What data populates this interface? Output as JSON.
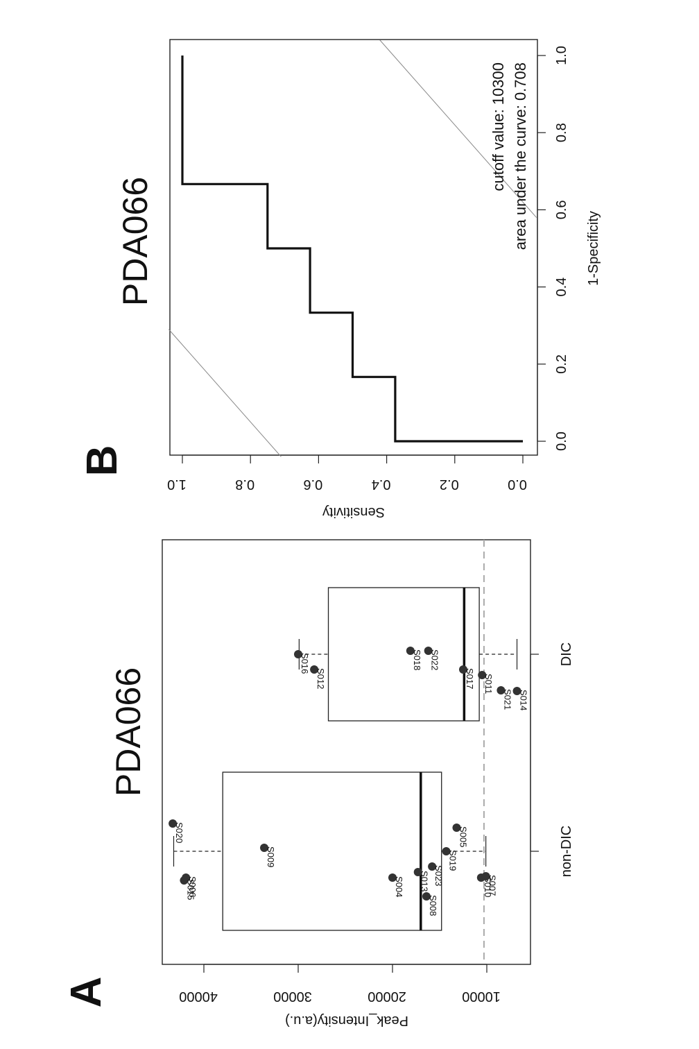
{
  "panel_a": {
    "letter": "A",
    "chart_data": {
      "type": "box",
      "title": "PDA066",
      "xlabel": "",
      "ylabel": "Peak_Intensity(a.u.)",
      "ylim": [
        5000,
        44000
      ],
      "yticks": [
        10000,
        20000,
        30000,
        40000
      ],
      "categories": [
        "non-DIC",
        "DIC"
      ],
      "cutoff_line": 10300,
      "boxes": [
        {
          "category": "non-DIC",
          "whisker_low": 10100,
          "q1": 14800,
          "median": 17000,
          "q3": 38000,
          "whisker_high": 43200
        },
        {
          "category": "DIC",
          "whisker_low": 6800,
          "q1": 10800,
          "median": 12400,
          "q3": 26800,
          "whisker_high": 29900
        }
      ],
      "points": [
        {
          "category": "non-DIC",
          "label": "S008",
          "value": 16400
        },
        {
          "category": "non-DIC",
          "label": "S004",
          "value": 20000
        },
        {
          "category": "non-DIC",
          "label": "S013",
          "value": 17300
        },
        {
          "category": "non-DIC",
          "label": "S023",
          "value": 15800
        },
        {
          "category": "non-DIC",
          "label": "S019",
          "value": 14300
        },
        {
          "category": "non-DIC",
          "label": "S005",
          "value": 13200
        },
        {
          "category": "non-DIC",
          "label": "S009",
          "value": 33600
        },
        {
          "category": "non-DIC",
          "label": "S006",
          "value": 41900
        },
        {
          "category": "non-DIC",
          "label": "S015",
          "value": 42100
        },
        {
          "category": "non-DIC",
          "label": "S020",
          "value": 43300
        },
        {
          "category": "non-DIC",
          "label": "S010",
          "value": 10600
        },
        {
          "category": "non-DIC",
          "label": "S007",
          "value": 10100
        },
        {
          "category": "DIC",
          "label": "S021",
          "value": 8500
        },
        {
          "category": "DIC",
          "label": "S018",
          "value": 18100
        },
        {
          "category": "DIC",
          "label": "S022",
          "value": 16200
        },
        {
          "category": "DIC",
          "label": "S017",
          "value": 12500
        },
        {
          "category": "DIC",
          "label": "S011",
          "value": 10500
        },
        {
          "category": "DIC",
          "label": "S014",
          "value": 6800
        },
        {
          "category": "DIC",
          "label": "S016",
          "value": 30000
        },
        {
          "category": "DIC",
          "label": "S012",
          "value": 28300
        }
      ]
    }
  },
  "panel_b": {
    "letter": "B",
    "chart_data": {
      "type": "line",
      "title": "PDA066",
      "xlabel": "1-Specificity",
      "ylabel": "Sensitivity",
      "xlim": [
        -0.04,
        1.04
      ],
      "ylim": [
        -0.04,
        1.04
      ],
      "xticks": [
        "0.0",
        "0.2",
        "0.4",
        "0.6",
        "0.8",
        "1.0"
      ],
      "yticks": [
        "0.0",
        "0.2",
        "0.4",
        "0.6",
        "0.8",
        "1.0"
      ],
      "series": [
        {
          "x": [
            0,
            0,
            0.1667,
            0.1667,
            0.3333,
            0.3333,
            0.5,
            0.5,
            0.6667,
            0.6667,
            1.0
          ],
          "y": [
            0,
            0.375,
            0.375,
            0.5,
            0.5,
            0.625,
            0.625,
            0.75,
            0.75,
            1.0,
            1.0
          ]
        }
      ],
      "reference_lines": [
        {
          "intercept": 0.75
        },
        {
          "intercept": -0.62
        }
      ],
      "annotations": [
        "cutoff value: 10300",
        "area under the curve: 0.708"
      ]
    }
  }
}
